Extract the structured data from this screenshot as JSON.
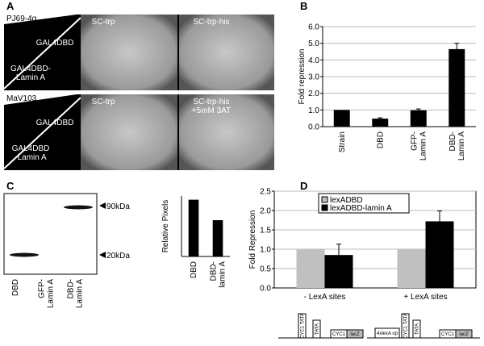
{
  "panels": [
    "A",
    "B",
    "C",
    "D"
  ],
  "panel_a": {
    "rows": [
      {
        "strain": "PJ69-4α",
        "constructs": [
          "GAL4DBD",
          [
            "GAL4DBD-",
            "Lamin A"
          ]
        ],
        "media": [
          "SC-trp",
          "SC-trp-his"
        ]
      },
      {
        "strain": "MaV103",
        "constructs": [
          "GAL4DBD",
          [
            "GAL4DBD",
            "-Lamin A"
          ]
        ],
        "media": [
          "SC-trp",
          [
            "SC-trp-his",
            "+5mM 3AT"
          ]
        ]
      }
    ]
  },
  "panel_c_blot": {
    "lanes": [
      "DBD",
      [
        "GFP-",
        "Lamin A"
      ],
      [
        "DBD-",
        "Lamin A"
      ]
    ],
    "markers": [
      "90kDa",
      "20kDa"
    ]
  },
  "panel_d_diagram": {
    "construct_1": [
      "CYC1 TATA",
      "TATA",
      "CYC1",
      "lacZ"
    ],
    "construct_2": [
      "4xlexA op",
      "CYC1 TATA",
      "TATA",
      "CYC1",
      "lacZ"
    ]
  },
  "chart_data": [
    {
      "type": "bar",
      "y_label": "Fold repression",
      "categories": [
        "Strain",
        "DBD",
        [
          "GFP-",
          "Lamin A"
        ],
        [
          "DBD-",
          "Lamin A"
        ]
      ],
      "values": [
        1.0,
        0.48,
        0.98,
        4.65
      ],
      "errors": [
        0,
        0.05,
        0.08,
        0.35
      ],
      "color": "#000000",
      "ylim": [
        0,
        6
      ],
      "yticks": [
        {
          "value": 0,
          "label": "0.0"
        },
        {
          "value": 1,
          "label": "1.0"
        },
        {
          "value": 2,
          "label": "2.0"
        },
        {
          "value": 3,
          "label": "3.0"
        },
        {
          "value": 4,
          "label": "4.0"
        },
        {
          "value": 5,
          "label": "5.0"
        },
        {
          "value": 6,
          "label": "6.0"
        }
      ],
      "grid": true
    },
    {
      "type": "bar",
      "y_label": "Relative Pixels",
      "categories": [
        "DBD",
        [
          "DBD-",
          "lamin A"
        ]
      ],
      "values": [
        61,
        39
      ],
      "color": "#000000",
      "ylim": [
        0,
        65
      ],
      "grid": false
    },
    {
      "type": "grouped_bar",
      "y_label": "Fold Repression",
      "categories": [
        "- LexA sites",
        "+ LexA sites"
      ],
      "series": [
        {
          "name": "lexADBD",
          "color": "#c0c0c0",
          "values": [
            1.0,
            1.0
          ]
        },
        {
          "name": "lexADBD-lamin A",
          "color": "#000000",
          "values": [
            0.85,
            1.72
          ],
          "errors": [
            0.28,
            0.27
          ]
        }
      ],
      "ylim": [
        0,
        2.5
      ],
      "yticks": [
        {
          "value": 0,
          "label": "0.0"
        },
        {
          "value": 0.5,
          "label": "0.5"
        },
        {
          "value": 1,
          "label": "1.0"
        },
        {
          "value": 1.5,
          "label": "1.5"
        },
        {
          "value": 2,
          "label": "2.0"
        },
        {
          "value": 2.5,
          "label": "2.5"
        }
      ],
      "grid": true,
      "legend": "upper left"
    }
  ]
}
